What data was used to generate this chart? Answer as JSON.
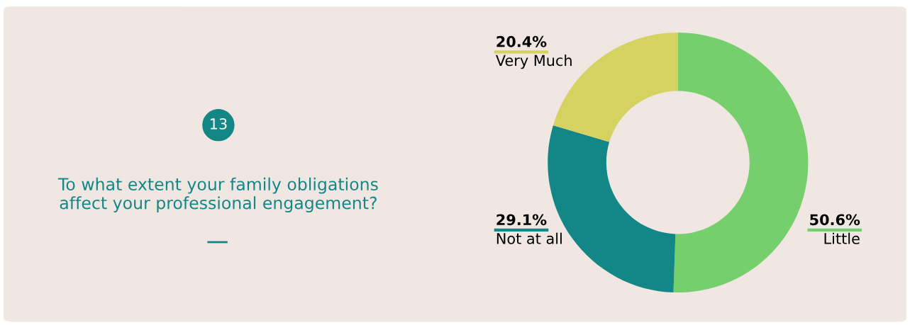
{
  "chart_data": {
    "type": "donut",
    "title": "To what extent your family obligations affect your professional engagement?",
    "annotations": [
      "13"
    ],
    "categories": [
      "Little",
      "Not at all",
      "Very Much"
    ],
    "values": [
      50.6,
      29.1,
      20.4
    ],
    "colors": [
      "#74cf6c",
      "#138786",
      "#d5d262"
    ],
    "value_labels": [
      "50.6%",
      "29.1%",
      "20.4%"
    ]
  }
}
